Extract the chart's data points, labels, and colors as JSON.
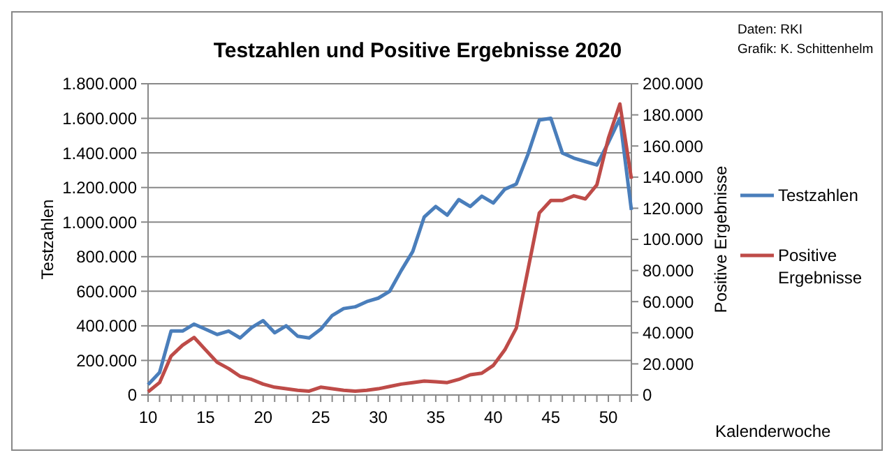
{
  "chart_data": {
    "type": "line",
    "title": "Testzahlen und Positive Ergebnisse 2020",
    "xlabel": "Kalenderwoche",
    "ylabel": "Testzahlen",
    "y2label": "Positive Ergebnisse",
    "annotations": [
      "Daten: RKI",
      "Grafik: K. Schittenhelm"
    ],
    "x": [
      10,
      11,
      12,
      13,
      14,
      15,
      16,
      17,
      18,
      19,
      20,
      21,
      22,
      23,
      24,
      25,
      26,
      27,
      28,
      29,
      30,
      31,
      32,
      33,
      34,
      35,
      36,
      37,
      38,
      39,
      40,
      41,
      42,
      43,
      44,
      45,
      46,
      47,
      48,
      49,
      50,
      51,
      52
    ],
    "series": [
      {
        "name": "Testzahlen",
        "color": "#4a7ebb",
        "values": [
          60000,
          130000,
          370000,
          370000,
          410000,
          380000,
          350000,
          370000,
          330000,
          390000,
          430000,
          360000,
          400000,
          340000,
          330000,
          380000,
          460000,
          500000,
          510000,
          540000,
          560000,
          600000,
          720000,
          830000,
          1030000,
          1090000,
          1040000,
          1130000,
          1090000,
          1150000,
          1110000,
          1190000,
          1220000,
          1390000,
          1590000,
          1600000,
          1400000,
          1370000,
          1350000,
          1330000,
          1460000,
          1600000,
          1070000
        ]
      },
      {
        "name": "Positive Ergebnisse",
        "color": "#be4b48",
        "axis": "y2",
        "values": [
          2000,
          8000,
          25000,
          32000,
          37000,
          29000,
          21000,
          17000,
          12000,
          10000,
          7000,
          5000,
          4000,
          3000,
          2500,
          5000,
          4000,
          3000,
          2500,
          3000,
          4000,
          5500,
          7000,
          8000,
          9000,
          8500,
          8000,
          10000,
          13000,
          14000,
          19000,
          29000,
          43000,
          80000,
          117000,
          125000,
          125000,
          128000,
          126000,
          135000,
          165000,
          187000,
          139000
        ]
      }
    ],
    "xlim": [
      10,
      52
    ],
    "xticks": [
      10,
      15,
      20,
      25,
      30,
      35,
      40,
      45,
      50
    ],
    "ylim": [
      0,
      1800000
    ],
    "yticks": [
      {
        "value": 0,
        "label": "0"
      },
      {
        "value": 200000,
        "label": "200.000"
      },
      {
        "value": 400000,
        "label": "400.000"
      },
      {
        "value": 600000,
        "label": "600.000"
      },
      {
        "value": 800000,
        "label": "800.000"
      },
      {
        "value": 1000000,
        "label": "1.000.000"
      },
      {
        "value": 1200000,
        "label": "1.200.000"
      },
      {
        "value": 1400000,
        "label": "1.400.000"
      },
      {
        "value": 1600000,
        "label": "1.600.000"
      },
      {
        "value": 1800000,
        "label": "1.800.000"
      }
    ],
    "y2lim": [
      0,
      200000
    ],
    "y2ticks": [
      {
        "value": 0,
        "label": "0"
      },
      {
        "value": 20000,
        "label": "20.000"
      },
      {
        "value": 40000,
        "label": "40.000"
      },
      {
        "value": 60000,
        "label": "60.000"
      },
      {
        "value": 80000,
        "label": "80.000"
      },
      {
        "value": 100000,
        "label": "100.000"
      },
      {
        "value": 120000,
        "label": "120.000"
      },
      {
        "value": 140000,
        "label": "140.000"
      },
      {
        "value": 160000,
        "label": "160.000"
      },
      {
        "value": 180000,
        "label": "180.000"
      },
      {
        "value": 200000,
        "label": "200.000"
      }
    ],
    "grid": "y",
    "legend": "right",
    "marker": "none",
    "line_style": "solid"
  }
}
